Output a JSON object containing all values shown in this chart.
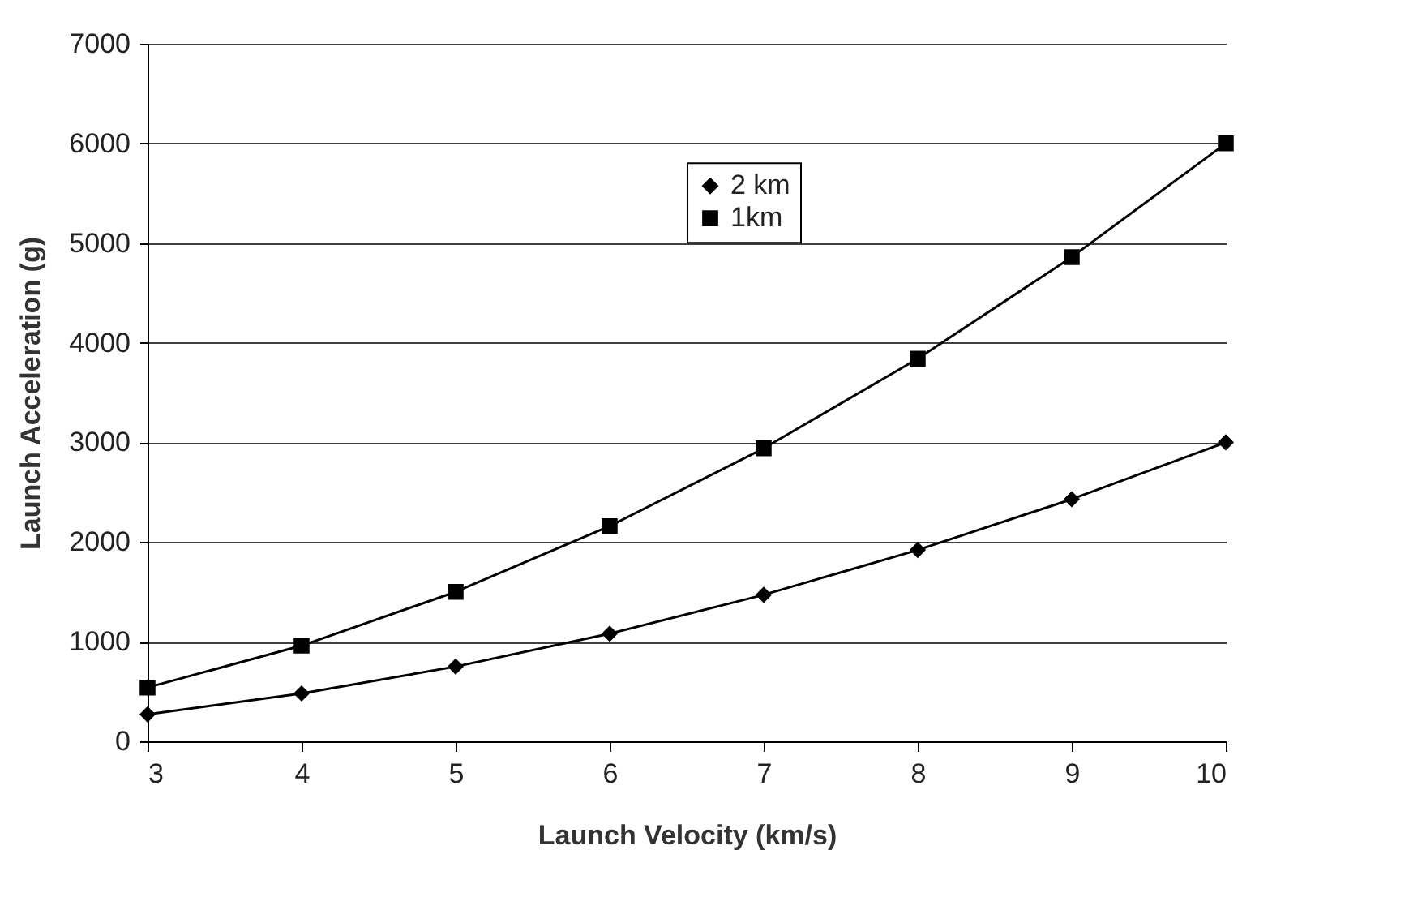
{
  "chart_data": {
    "type": "line",
    "xlabel": "Launch Velocity (km/s)",
    "ylabel": "Launch Acceleration (g)",
    "x": [
      3,
      4,
      5,
      6,
      7,
      8,
      9,
      10
    ],
    "series": [
      {
        "name": "2 km",
        "color": "#000000",
        "marker": "diamond",
        "values": [
          270,
          480,
          750,
          1080,
          1470,
          1920,
          2430,
          3000
        ]
      },
      {
        "name": "1km",
        "color": "#000000",
        "marker": "square",
        "values": [
          540,
          960,
          1500,
          2160,
          2940,
          3840,
          4860,
          6000
        ]
      }
    ],
    "xlim": [
      3,
      10
    ],
    "xticks": [
      3,
      4,
      5,
      6,
      7,
      8,
      9,
      10
    ],
    "ylim": [
      0,
      7000
    ],
    "yticks": [
      0,
      1000,
      2000,
      3000,
      4000,
      5000,
      6000,
      7000
    ],
    "grid": "y",
    "legend": "top"
  }
}
